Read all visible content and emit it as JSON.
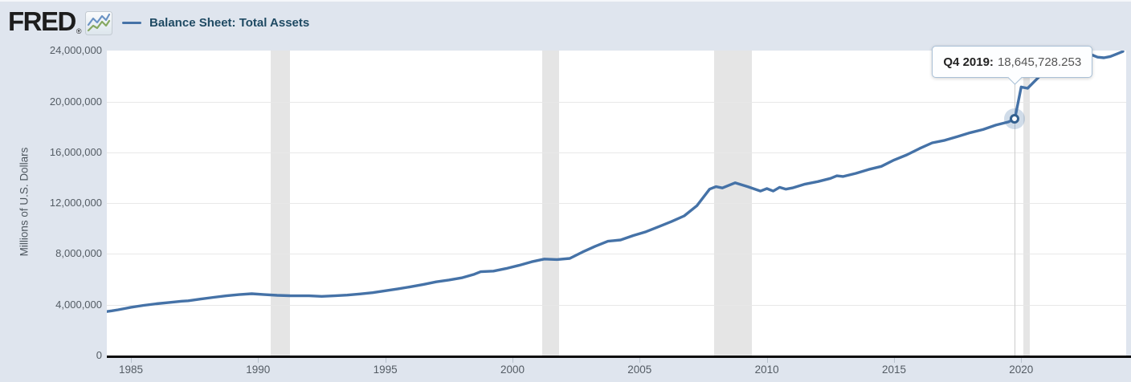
{
  "header": {
    "logo": {
      "text": "FRED",
      "registered": "®"
    },
    "legend": {
      "label": "Balance Sheet: Total Assets",
      "line_color": "#4572a7"
    }
  },
  "tooltip": {
    "label": "Q4 2019:",
    "value": "18,645,728.253"
  },
  "chart_data": {
    "type": "line",
    "title": "Balance Sheet: Total Assets",
    "xlabel": "",
    "ylabel": "Millions of U.S. Dollars",
    "xlim": [
      1984.0,
      2024.1
    ],
    "ylim": [
      0,
      24000000
    ],
    "grid": "horizontal",
    "legend_position": "top-left",
    "line_color": "#4572a7",
    "band_color": "#e5e5e5",
    "x_ticks": [
      1985,
      1990,
      1995,
      2000,
      2005,
      2010,
      2015,
      2020
    ],
    "y_ticks": [
      {
        "value": 24000000,
        "label": "24,000,000"
      },
      {
        "value": 20000000,
        "label": "20,000,000"
      },
      {
        "value": 16000000,
        "label": "16,000,000"
      },
      {
        "value": 12000000,
        "label": "12,000,000"
      },
      {
        "value": 8000000,
        "label": "8,000,000"
      },
      {
        "value": 4000000,
        "label": "4,000,000"
      },
      {
        "value": 0,
        "label": "0"
      }
    ],
    "recession_bands": [
      [
        1990.5,
        1991.25
      ],
      [
        2001.17,
        2001.83
      ],
      [
        2007.92,
        2009.42
      ],
      [
        2020.08,
        2020.33
      ]
    ],
    "highlight_point": {
      "period": "Q4 2019",
      "t": 2019.75,
      "value": 18645728.253
    },
    "series": [
      {
        "name": "Balance Sheet: Total Assets",
        "units": "Millions of U.S. Dollars",
        "points": [
          [
            1984.0,
            3450000
          ],
          [
            1984.25,
            3520000
          ],
          [
            1984.5,
            3600000
          ],
          [
            1984.75,
            3700000
          ],
          [
            1985.0,
            3800000
          ],
          [
            1985.5,
            3950000
          ],
          [
            1986.0,
            4080000
          ],
          [
            1986.5,
            4180000
          ],
          [
            1987.0,
            4280000
          ],
          [
            1987.25,
            4310000
          ],
          [
            1987.75,
            4450000
          ],
          [
            1988.25,
            4580000
          ],
          [
            1988.75,
            4700000
          ],
          [
            1989.25,
            4800000
          ],
          [
            1989.75,
            4870000
          ],
          [
            1990.25,
            4800000
          ],
          [
            1990.75,
            4740000
          ],
          [
            1991.25,
            4710000
          ],
          [
            1992.0,
            4700000
          ],
          [
            1992.5,
            4660000
          ],
          [
            1993.0,
            4700000
          ],
          [
            1993.5,
            4760000
          ],
          [
            1994.0,
            4850000
          ],
          [
            1994.5,
            4950000
          ],
          [
            1995.0,
            5100000
          ],
          [
            1995.5,
            5250000
          ],
          [
            1996.0,
            5420000
          ],
          [
            1996.5,
            5600000
          ],
          [
            1997.0,
            5800000
          ],
          [
            1997.5,
            5950000
          ],
          [
            1998.0,
            6120000
          ],
          [
            1998.5,
            6400000
          ],
          [
            1998.75,
            6600000
          ],
          [
            1999.25,
            6650000
          ],
          [
            1999.75,
            6850000
          ],
          [
            2000.25,
            7100000
          ],
          [
            2000.75,
            7380000
          ],
          [
            2001.25,
            7600000
          ],
          [
            2001.75,
            7560000
          ],
          [
            2002.25,
            7650000
          ],
          [
            2002.75,
            8150000
          ],
          [
            2003.25,
            8600000
          ],
          [
            2003.75,
            9000000
          ],
          [
            2004.25,
            9100000
          ],
          [
            2004.75,
            9450000
          ],
          [
            2005.25,
            9750000
          ],
          [
            2005.75,
            10150000
          ],
          [
            2006.25,
            10550000
          ],
          [
            2006.75,
            11000000
          ],
          [
            2007.25,
            11800000
          ],
          [
            2007.75,
            13100000
          ],
          [
            2008.0,
            13300000
          ],
          [
            2008.25,
            13200000
          ],
          [
            2008.75,
            13600000
          ],
          [
            2009.25,
            13300000
          ],
          [
            2009.75,
            12950000
          ],
          [
            2010.0,
            13150000
          ],
          [
            2010.25,
            12950000
          ],
          [
            2010.5,
            13250000
          ],
          [
            2010.75,
            13100000
          ],
          [
            2011.0,
            13200000
          ],
          [
            2011.5,
            13500000
          ],
          [
            2012.0,
            13700000
          ],
          [
            2012.5,
            13950000
          ],
          [
            2012.75,
            14150000
          ],
          [
            2013.0,
            14100000
          ],
          [
            2013.5,
            14350000
          ],
          [
            2014.0,
            14650000
          ],
          [
            2014.5,
            14900000
          ],
          [
            2015.0,
            15400000
          ],
          [
            2015.5,
            15800000
          ],
          [
            2016.0,
            16300000
          ],
          [
            2016.5,
            16750000
          ],
          [
            2017.0,
            16950000
          ],
          [
            2017.5,
            17250000
          ],
          [
            2018.0,
            17550000
          ],
          [
            2018.5,
            17800000
          ],
          [
            2019.0,
            18150000
          ],
          [
            2019.5,
            18400000
          ],
          [
            2019.75,
            18645728.253
          ],
          [
            2020.0,
            21150000
          ],
          [
            2020.25,
            21050000
          ],
          [
            2020.5,
            21550000
          ],
          [
            2020.75,
            22050000
          ],
          [
            2021.0,
            22400000
          ],
          [
            2021.25,
            22700000
          ],
          [
            2021.5,
            23000000
          ],
          [
            2021.75,
            23300000
          ],
          [
            2022.0,
            23500000
          ],
          [
            2022.25,
            23800000
          ],
          [
            2022.5,
            23900000
          ],
          [
            2022.75,
            23700000
          ],
          [
            2023.0,
            23500000
          ],
          [
            2023.25,
            23450000
          ],
          [
            2023.5,
            23550000
          ],
          [
            2023.75,
            23750000
          ],
          [
            2024.0,
            23950000
          ]
        ]
      }
    ]
  }
}
